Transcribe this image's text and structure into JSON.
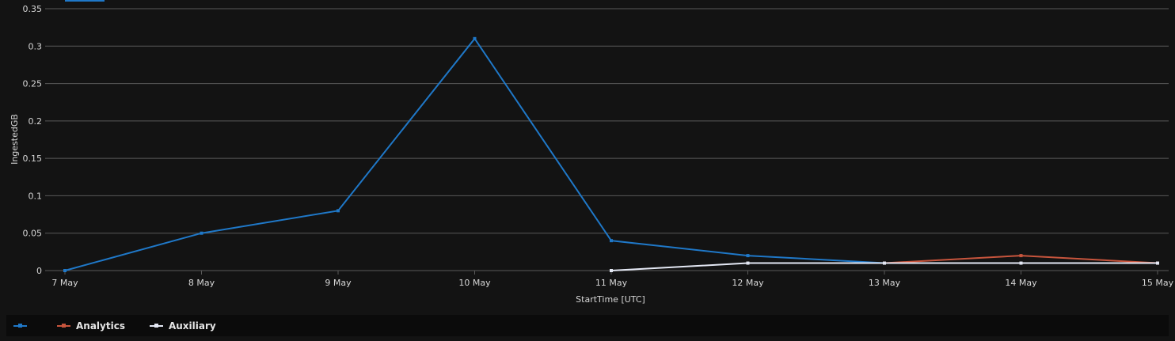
{
  "chart_data": {
    "type": "line",
    "xlabel": "StartTime [UTC]",
    "ylabel": "IngestedGB",
    "categories": [
      "7 May",
      "8 May",
      "9 May",
      "10 May",
      "11 May",
      "12 May",
      "13 May",
      "14 May",
      "15 May"
    ],
    "yticks": [
      "0",
      "0.05",
      "0.1",
      "0.15",
      "0.2",
      "0.25",
      "0.3",
      "0.35"
    ],
    "ylim": [
      0,
      0.35
    ],
    "grid": true,
    "legend_position": "bottom",
    "series": [
      {
        "name": "",
        "color": "#1f78c8",
        "values": [
          0,
          0.05,
          0.08,
          0.31,
          0.04,
          0.02,
          0.01,
          null,
          null
        ]
      },
      {
        "name": "Analytics",
        "color": "#c8553d",
        "values": [
          null,
          null,
          null,
          null,
          null,
          null,
          0.01,
          0.02,
          0.01
        ]
      },
      {
        "name": "Auxiliary",
        "color": "#e4e8f4",
        "values": [
          null,
          null,
          null,
          null,
          0,
          0.01,
          0.01,
          0.01,
          0.01
        ]
      }
    ]
  }
}
